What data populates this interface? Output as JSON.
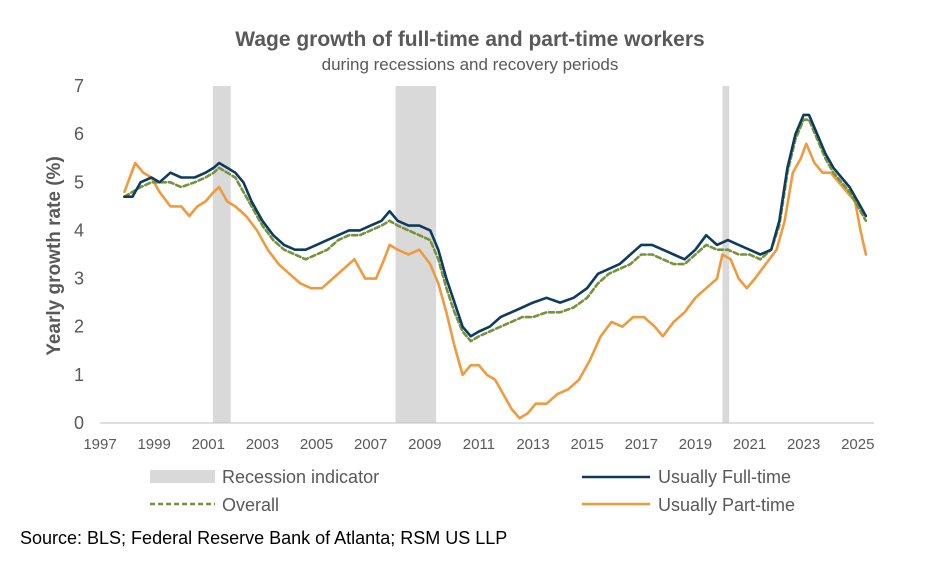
{
  "chart_data": {
    "type": "line",
    "title": "Wage growth of full-time and part-time workers",
    "subtitle": "during recessions and recovery periods",
    "xlabel": "",
    "ylabel": "Yearly growth rate (%)",
    "xlim": [
      1997,
      2025.6
    ],
    "ylim": [
      0,
      7
    ],
    "yticks": [
      "0",
      "1",
      "2",
      "3",
      "4",
      "5",
      "6",
      "7"
    ],
    "xticks": [
      "1997",
      "1999",
      "2001",
      "2003",
      "2005",
      "2007",
      "2009",
      "2011",
      "2013",
      "2015",
      "2017",
      "2019",
      "2021",
      "2023",
      "2025"
    ],
    "recessions": [
      {
        "start": 2001.17,
        "end": 2001.83
      },
      {
        "start": 2007.92,
        "end": 2009.42
      },
      {
        "start": 2020.0,
        "end": 2020.25
      }
    ],
    "series": [
      {
        "name": "Usually Full-time",
        "color": "#0e3c5e",
        "style": "solid",
        "points": [
          [
            1997.9,
            4.7
          ],
          [
            1998.2,
            4.7
          ],
          [
            1998.5,
            5.0
          ],
          [
            1998.9,
            5.1
          ],
          [
            1999.2,
            5.0
          ],
          [
            1999.6,
            5.2
          ],
          [
            2000.0,
            5.1
          ],
          [
            2000.5,
            5.1
          ],
          [
            2000.9,
            5.2
          ],
          [
            2001.2,
            5.3
          ],
          [
            2001.4,
            5.4
          ],
          [
            2001.7,
            5.3
          ],
          [
            2002.0,
            5.2
          ],
          [
            2002.3,
            5.0
          ],
          [
            2002.6,
            4.6
          ],
          [
            2003.0,
            4.2
          ],
          [
            2003.4,
            3.9
          ],
          [
            2003.8,
            3.7
          ],
          [
            2004.2,
            3.6
          ],
          [
            2004.6,
            3.6
          ],
          [
            2005.0,
            3.7
          ],
          [
            2005.4,
            3.8
          ],
          [
            2005.8,
            3.9
          ],
          [
            2006.2,
            4.0
          ],
          [
            2006.6,
            4.0
          ],
          [
            2007.0,
            4.1
          ],
          [
            2007.4,
            4.2
          ],
          [
            2007.7,
            4.4
          ],
          [
            2008.0,
            4.2
          ],
          [
            2008.4,
            4.1
          ],
          [
            2008.8,
            4.1
          ],
          [
            2009.2,
            4.0
          ],
          [
            2009.5,
            3.6
          ],
          [
            2009.8,
            3.0
          ],
          [
            2010.1,
            2.5
          ],
          [
            2010.4,
            2.0
          ],
          [
            2010.7,
            1.8
          ],
          [
            2011.0,
            1.9
          ],
          [
            2011.4,
            2.0
          ],
          [
            2011.8,
            2.2
          ],
          [
            2012.2,
            2.3
          ],
          [
            2012.6,
            2.4
          ],
          [
            2013.0,
            2.5
          ],
          [
            2013.5,
            2.6
          ],
          [
            2014.0,
            2.5
          ],
          [
            2014.5,
            2.6
          ],
          [
            2015.0,
            2.8
          ],
          [
            2015.4,
            3.1
          ],
          [
            2015.8,
            3.2
          ],
          [
            2016.2,
            3.3
          ],
          [
            2016.6,
            3.5
          ],
          [
            2017.0,
            3.7
          ],
          [
            2017.4,
            3.7
          ],
          [
            2017.8,
            3.6
          ],
          [
            2018.2,
            3.5
          ],
          [
            2018.6,
            3.4
          ],
          [
            2019.0,
            3.6
          ],
          [
            2019.4,
            3.9
          ],
          [
            2019.8,
            3.7
          ],
          [
            2020.2,
            3.8
          ],
          [
            2020.6,
            3.7
          ],
          [
            2021.0,
            3.6
          ],
          [
            2021.4,
            3.5
          ],
          [
            2021.8,
            3.6
          ],
          [
            2022.1,
            4.2
          ],
          [
            2022.4,
            5.3
          ],
          [
            2022.7,
            6.0
          ],
          [
            2023.0,
            6.4
          ],
          [
            2023.2,
            6.4
          ],
          [
            2023.5,
            6.0
          ],
          [
            2023.8,
            5.6
          ],
          [
            2024.1,
            5.3
          ],
          [
            2024.4,
            5.1
          ],
          [
            2024.7,
            4.9
          ],
          [
            2025.0,
            4.6
          ],
          [
            2025.3,
            4.3
          ]
        ]
      },
      {
        "name": "Overall",
        "color": "#76933c",
        "style": "dashed",
        "points": [
          [
            1997.9,
            4.7
          ],
          [
            1998.2,
            4.8
          ],
          [
            1998.5,
            4.9
          ],
          [
            1998.9,
            5.0
          ],
          [
            1999.2,
            5.0
          ],
          [
            1999.6,
            5.0
          ],
          [
            2000.0,
            4.9
          ],
          [
            2000.5,
            5.0
          ],
          [
            2000.9,
            5.1
          ],
          [
            2001.2,
            5.2
          ],
          [
            2001.4,
            5.3
          ],
          [
            2001.7,
            5.2
          ],
          [
            2002.0,
            5.1
          ],
          [
            2002.3,
            4.8
          ],
          [
            2002.6,
            4.5
          ],
          [
            2003.0,
            4.1
          ],
          [
            2003.4,
            3.8
          ],
          [
            2003.8,
            3.6
          ],
          [
            2004.2,
            3.5
          ],
          [
            2004.6,
            3.4
          ],
          [
            2005.0,
            3.5
          ],
          [
            2005.4,
            3.6
          ],
          [
            2005.8,
            3.8
          ],
          [
            2006.2,
            3.9
          ],
          [
            2006.6,
            3.9
          ],
          [
            2007.0,
            4.0
          ],
          [
            2007.4,
            4.1
          ],
          [
            2007.7,
            4.2
          ],
          [
            2008.0,
            4.1
          ],
          [
            2008.4,
            4.0
          ],
          [
            2008.8,
            3.9
          ],
          [
            2009.2,
            3.8
          ],
          [
            2009.5,
            3.4
          ],
          [
            2009.8,
            2.8
          ],
          [
            2010.1,
            2.3
          ],
          [
            2010.4,
            1.9
          ],
          [
            2010.7,
            1.7
          ],
          [
            2011.0,
            1.8
          ],
          [
            2011.4,
            1.9
          ],
          [
            2011.8,
            2.0
          ],
          [
            2012.2,
            2.1
          ],
          [
            2012.6,
            2.2
          ],
          [
            2013.0,
            2.2
          ],
          [
            2013.5,
            2.3
          ],
          [
            2014.0,
            2.3
          ],
          [
            2014.5,
            2.4
          ],
          [
            2015.0,
            2.6
          ],
          [
            2015.4,
            2.9
          ],
          [
            2015.8,
            3.1
          ],
          [
            2016.2,
            3.2
          ],
          [
            2016.6,
            3.3
          ],
          [
            2017.0,
            3.5
          ],
          [
            2017.4,
            3.5
          ],
          [
            2017.8,
            3.4
          ],
          [
            2018.2,
            3.3
          ],
          [
            2018.6,
            3.3
          ],
          [
            2019.0,
            3.5
          ],
          [
            2019.4,
            3.7
          ],
          [
            2019.8,
            3.6
          ],
          [
            2020.2,
            3.6
          ],
          [
            2020.6,
            3.5
          ],
          [
            2021.0,
            3.5
          ],
          [
            2021.4,
            3.4
          ],
          [
            2021.8,
            3.6
          ],
          [
            2022.1,
            4.1
          ],
          [
            2022.4,
            5.2
          ],
          [
            2022.7,
            5.9
          ],
          [
            2023.0,
            6.3
          ],
          [
            2023.2,
            6.3
          ],
          [
            2023.5,
            5.9
          ],
          [
            2023.8,
            5.5
          ],
          [
            2024.1,
            5.2
          ],
          [
            2024.4,
            5.0
          ],
          [
            2024.7,
            4.8
          ],
          [
            2025.0,
            4.5
          ],
          [
            2025.3,
            4.2
          ]
        ]
      },
      {
        "name": "Usually Part-time",
        "color": "#f09a3e",
        "style": "solid",
        "points": [
          [
            1997.9,
            4.8
          ],
          [
            1998.1,
            5.1
          ],
          [
            1998.3,
            5.4
          ],
          [
            1998.6,
            5.2
          ],
          [
            1998.9,
            5.1
          ],
          [
            1999.2,
            4.8
          ],
          [
            1999.6,
            4.5
          ],
          [
            2000.0,
            4.5
          ],
          [
            2000.3,
            4.3
          ],
          [
            2000.6,
            4.5
          ],
          [
            2000.9,
            4.6
          ],
          [
            2001.2,
            4.8
          ],
          [
            2001.4,
            4.9
          ],
          [
            2001.7,
            4.6
          ],
          [
            2002.0,
            4.5
          ],
          [
            2002.4,
            4.3
          ],
          [
            2002.8,
            4.0
          ],
          [
            2003.2,
            3.6
          ],
          [
            2003.6,
            3.3
          ],
          [
            2004.0,
            3.1
          ],
          [
            2004.4,
            2.9
          ],
          [
            2004.8,
            2.8
          ],
          [
            2005.2,
            2.8
          ],
          [
            2005.6,
            3.0
          ],
          [
            2006.0,
            3.2
          ],
          [
            2006.4,
            3.4
          ],
          [
            2006.8,
            3.0
          ],
          [
            2007.2,
            3.0
          ],
          [
            2007.5,
            3.4
          ],
          [
            2007.7,
            3.7
          ],
          [
            2008.0,
            3.6
          ],
          [
            2008.4,
            3.5
          ],
          [
            2008.8,
            3.6
          ],
          [
            2009.2,
            3.3
          ],
          [
            2009.5,
            2.9
          ],
          [
            2009.8,
            2.3
          ],
          [
            2010.1,
            1.6
          ],
          [
            2010.4,
            1.0
          ],
          [
            2010.7,
            1.2
          ],
          [
            2011.0,
            1.2
          ],
          [
            2011.3,
            1.0
          ],
          [
            2011.6,
            0.9
          ],
          [
            2011.9,
            0.6
          ],
          [
            2012.2,
            0.3
          ],
          [
            2012.5,
            0.1
          ],
          [
            2012.8,
            0.2
          ],
          [
            2013.1,
            0.4
          ],
          [
            2013.5,
            0.4
          ],
          [
            2013.9,
            0.6
          ],
          [
            2014.3,
            0.7
          ],
          [
            2014.7,
            0.9
          ],
          [
            2015.1,
            1.3
          ],
          [
            2015.5,
            1.8
          ],
          [
            2015.9,
            2.1
          ],
          [
            2016.3,
            2.0
          ],
          [
            2016.7,
            2.2
          ],
          [
            2017.1,
            2.2
          ],
          [
            2017.5,
            2.0
          ],
          [
            2017.8,
            1.8
          ],
          [
            2018.2,
            2.1
          ],
          [
            2018.6,
            2.3
          ],
          [
            2019.0,
            2.6
          ],
          [
            2019.4,
            2.8
          ],
          [
            2019.8,
            3.0
          ],
          [
            2020.0,
            3.5
          ],
          [
            2020.3,
            3.4
          ],
          [
            2020.6,
            3.0
          ],
          [
            2020.9,
            2.8
          ],
          [
            2021.2,
            3.0
          ],
          [
            2021.6,
            3.3
          ],
          [
            2022.0,
            3.6
          ],
          [
            2022.3,
            4.2
          ],
          [
            2022.6,
            5.2
          ],
          [
            2022.9,
            5.5
          ],
          [
            2023.1,
            5.8
          ],
          [
            2023.4,
            5.4
          ],
          [
            2023.7,
            5.2
          ],
          [
            2024.0,
            5.2
          ],
          [
            2024.3,
            5.0
          ],
          [
            2024.6,
            4.8
          ],
          [
            2024.9,
            4.6
          ],
          [
            2025.1,
            4.0
          ],
          [
            2025.3,
            3.5
          ]
        ]
      }
    ],
    "legend": {
      "recession_label": "Recession indicator",
      "overall_label": "Overall",
      "full_time_label": "Usually Full-time",
      "part_time_label": "Usually Part-time",
      "position": "bottom"
    },
    "source": "Source: BLS; Federal Reserve Bank of Atlanta; RSM US LLP",
    "colors": {
      "recession": "#d9d9d9",
      "axis": "#bfbfbf",
      "text": "#595959"
    }
  }
}
